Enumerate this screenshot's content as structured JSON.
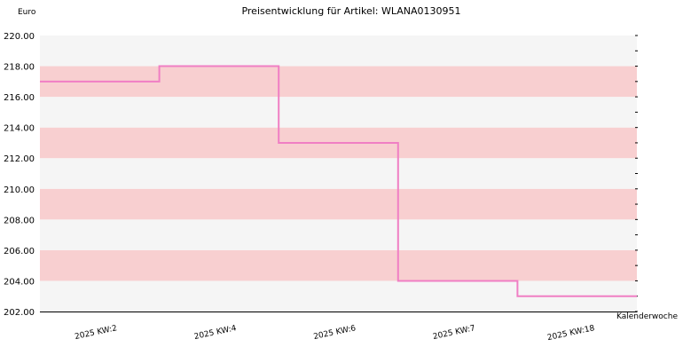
{
  "chart_data": {
    "type": "line",
    "step": true,
    "title": "Preisentwicklung für Artikel: WLANA0130951",
    "xlabel": "Kalenderwoche",
    "ylabel": "Euro",
    "ylim": [
      202,
      220
    ],
    "ytick_step": 2,
    "yticks": [
      "202.00",
      "204.00",
      "206.00",
      "208.00",
      "210.00",
      "212.00",
      "214.00",
      "216.00",
      "218.00",
      "220.00"
    ],
    "categories": [
      "2025 KW:2",
      "2025 KW:4",
      "2025 KW:6",
      "2025 KW:7",
      "2025 KW:18",
      ""
    ],
    "series": [
      {
        "values": [
          217,
          218,
          213,
          204,
          203,
          203
        ]
      }
    ],
    "grid": true,
    "colors": {
      "line": "#f07fc4",
      "band_dark": "#f8cfd0",
      "band_light": "#f5f5f5",
      "axis": "#000000"
    }
  }
}
